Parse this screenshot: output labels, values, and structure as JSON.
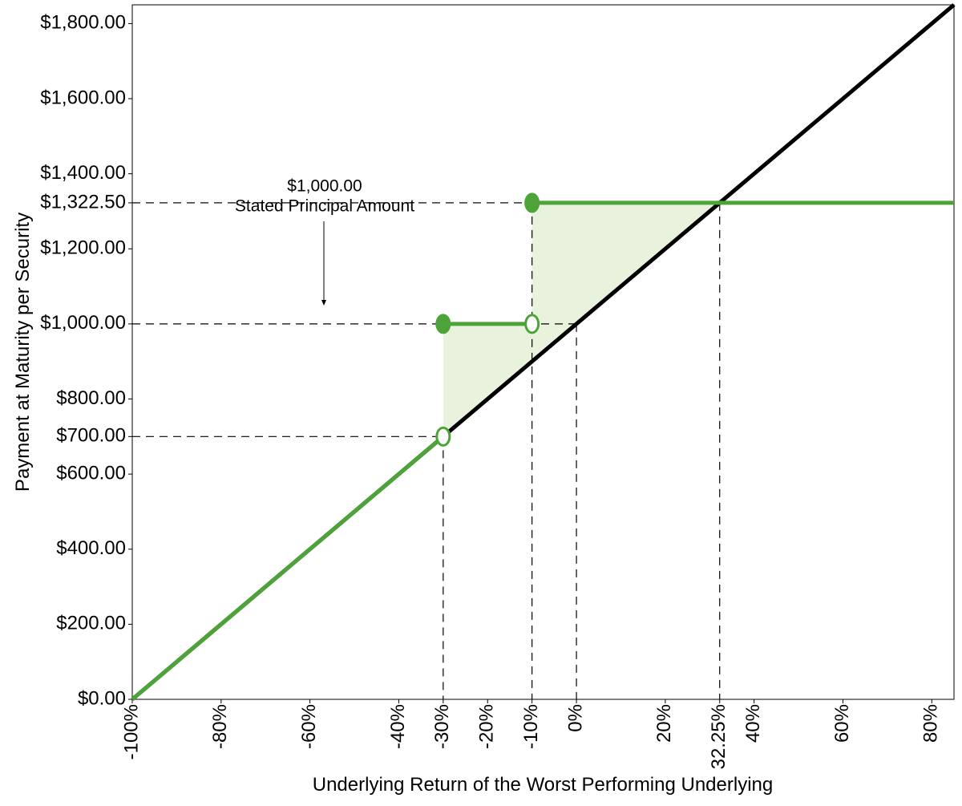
{
  "chart_data": {
    "type": "line",
    "ylabel": "Payment at Maturity per Security",
    "xlabel": "Underlying Return of the Worst Performing Underlying",
    "annotation": {
      "lines": [
        "$1,000.00",
        "Stated Principal Amount"
      ]
    },
    "xlim": [
      -100,
      85
    ],
    "ylim": [
      0,
      1850
    ],
    "xticks": [
      {
        "value": -100,
        "label": "-100%"
      },
      {
        "value": -80,
        "label": "-80%"
      },
      {
        "value": -60,
        "label": "-60%"
      },
      {
        "value": -40,
        "label": "-40%"
      },
      {
        "value": -30,
        "label": "-30%"
      },
      {
        "value": -20,
        "label": "-20%"
      },
      {
        "value": -10,
        "label": "-10%"
      },
      {
        "value": 0,
        "label": "0%"
      },
      {
        "value": 20,
        "label": "20%"
      },
      {
        "value": 32.25,
        "label": "32.25%"
      },
      {
        "value": 40,
        "label": "40%"
      },
      {
        "value": 60,
        "label": "60%"
      },
      {
        "value": 80,
        "label": "80%"
      }
    ],
    "yticks": [
      {
        "value": 0,
        "label": "$0.00"
      },
      {
        "value": 200,
        "label": "$200.00"
      },
      {
        "value": 400,
        "label": "$400.00"
      },
      {
        "value": 600,
        "label": "$600.00"
      },
      {
        "value": 700,
        "label": "$700.00"
      },
      {
        "value": 800,
        "label": "$800.00"
      },
      {
        "value": 1000,
        "label": "$1,000.00"
      },
      {
        "value": 1200,
        "label": "$1,200.00"
      },
      {
        "value": 1322.5,
        "label": "$1,322.50"
      },
      {
        "value": 1400,
        "label": "$1,400.00"
      },
      {
        "value": 1600,
        "label": "$1,600.00"
      },
      {
        "value": 1800,
        "label": "$1,800.00"
      }
    ],
    "reference_lines": [
      {
        "x": -30,
        "y": 700
      },
      {
        "x": -10,
        "y": 1322.5
      },
      {
        "x": 0,
        "y": 1000
      },
      {
        "x": 32.25,
        "y": 1322.5
      }
    ],
    "shaded": {
      "color": "#e8f2dd",
      "x": [
        -30,
        -30,
        -10,
        -10,
        32.25
      ],
      "y": [
        700,
        1000,
        1000,
        1322.5,
        1322.5
      ]
    },
    "series": [
      {
        "color": "#000000",
        "x": [
          -100,
          85
        ],
        "values": [
          0,
          1850
        ]
      },
      {
        "color": "#4ca338",
        "x": [
          -100,
          -30,
          -30,
          -30,
          -10,
          -10,
          -10,
          85
        ],
        "values": [
          0,
          700,
          null,
          1000,
          1000,
          null,
          1322.5,
          1322.5
        ]
      }
    ],
    "points": [
      {
        "x": -30,
        "y": 700,
        "filled": false
      },
      {
        "x": -30,
        "y": 1000,
        "filled": true
      },
      {
        "x": -10,
        "y": 1000,
        "filled": false
      },
      {
        "x": -10,
        "y": 1322.5,
        "filled": true
      }
    ],
    "points_color": "#4ca338"
  }
}
